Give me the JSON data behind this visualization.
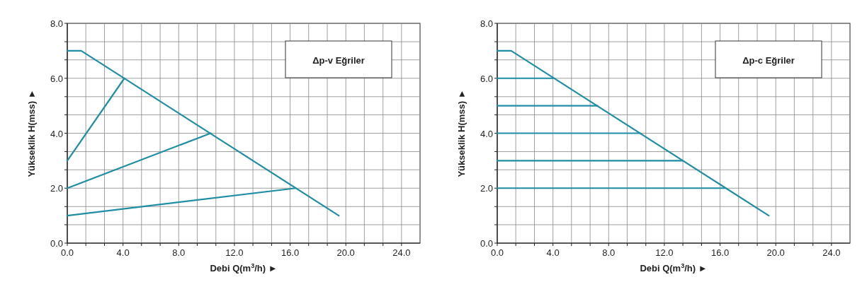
{
  "chart_data": [
    {
      "type": "line",
      "title": "Δp-v Eğriler",
      "xlabel": "Debi Q(m$^{3}$/h) ►",
      "ylabel": "Yükseklik H(mss) ►",
      "xlim": [
        0,
        25.33
      ],
      "ylim": [
        0,
        8
      ],
      "xticks": [
        {
          "value": 0,
          "label": "0.0"
        },
        {
          "value": 1.33,
          "label": null
        },
        {
          "value": 2.67,
          "label": null
        },
        {
          "value": 4,
          "label": "4.0"
        },
        {
          "value": 5.33,
          "label": null
        },
        {
          "value": 6.67,
          "label": null
        },
        {
          "value": 8,
          "label": "8.0"
        },
        {
          "value": 9.33,
          "label": null
        },
        {
          "value": 10.67,
          "label": null
        },
        {
          "value": 12,
          "label": "12.0"
        },
        {
          "value": 13.33,
          "label": null
        },
        {
          "value": 14.67,
          "label": null
        },
        {
          "value": 16,
          "label": "16.0"
        },
        {
          "value": 17.33,
          "label": null
        },
        {
          "value": 18.67,
          "label": null
        },
        {
          "value": 20,
          "label": "20.0"
        },
        {
          "value": 21.33,
          "label": null
        },
        {
          "value": 22.67,
          "label": null
        },
        {
          "value": 24,
          "label": "24.0"
        }
      ],
      "yticks": [
        {
          "value": 0,
          "label": "0.0"
        },
        {
          "value": 0.67,
          "label": null
        },
        {
          "value": 1.33,
          "label": null
        },
        {
          "value": 2,
          "label": "2.0"
        },
        {
          "value": 2.67,
          "label": null
        },
        {
          "value": 3.33,
          "label": null
        },
        {
          "value": 4,
          "label": "4.0"
        },
        {
          "value": 4.67,
          "label": null
        },
        {
          "value": 5.33,
          "label": null
        },
        {
          "value": 6,
          "label": "6.0"
        },
        {
          "value": 6.67,
          "label": null
        },
        {
          "value": 7.33,
          "label": null
        },
        {
          "value": 8,
          "label": "8.0"
        }
      ],
      "grid": true,
      "series": [
        {
          "color": "#1f8ea5",
          "x": [
            0,
            1,
            19.5
          ],
          "values": [
            7,
            7,
            1
          ]
        },
        {
          "color": "#1f8ea5",
          "x": [
            0,
            4.1
          ],
          "values": [
            3,
            6
          ]
        },
        {
          "color": "#1f8ea5",
          "x": [
            0,
            10.3
          ],
          "values": [
            2,
            4
          ]
        },
        {
          "color": "#1f8ea5",
          "x": [
            0,
            16.4
          ],
          "values": [
            1,
            2
          ]
        }
      ]
    },
    {
      "type": "line",
      "title": "Δp-c Eğriler",
      "xlabel": "Debi Q(m$^{3}$/h) ►",
      "ylabel": "Yükseklik H(mss) ►",
      "xlim": [
        0,
        25.33
      ],
      "ylim": [
        0,
        8
      ],
      "xticks": [
        {
          "value": 0,
          "label": "0.0"
        },
        {
          "value": 1.33,
          "label": null
        },
        {
          "value": 2.67,
          "label": null
        },
        {
          "value": 4,
          "label": "4.0"
        },
        {
          "value": 5.33,
          "label": null
        },
        {
          "value": 6.67,
          "label": null
        },
        {
          "value": 8,
          "label": "8.0"
        },
        {
          "value": 9.33,
          "label": null
        },
        {
          "value": 10.67,
          "label": null
        },
        {
          "value": 12,
          "label": "12.0"
        },
        {
          "value": 13.33,
          "label": null
        },
        {
          "value": 14.67,
          "label": null
        },
        {
          "value": 16,
          "label": "16.0"
        },
        {
          "value": 17.33,
          "label": null
        },
        {
          "value": 18.67,
          "label": null
        },
        {
          "value": 20,
          "label": "20.0"
        },
        {
          "value": 21.33,
          "label": null
        },
        {
          "value": 22.67,
          "label": null
        },
        {
          "value": 24,
          "label": "24.0"
        }
      ],
      "yticks": [
        {
          "value": 0,
          "label": "0.0"
        },
        {
          "value": 0.67,
          "label": null
        },
        {
          "value": 1.33,
          "label": null
        },
        {
          "value": 2,
          "label": "2.0"
        },
        {
          "value": 2.67,
          "label": null
        },
        {
          "value": 3.33,
          "label": null
        },
        {
          "value": 4,
          "label": "4.0"
        },
        {
          "value": 4.67,
          "label": null
        },
        {
          "value": 5.33,
          "label": null
        },
        {
          "value": 6,
          "label": "6.0"
        },
        {
          "value": 6.67,
          "label": null
        },
        {
          "value": 7.33,
          "label": null
        },
        {
          "value": 8,
          "label": "8.0"
        }
      ],
      "grid": true,
      "series": [
        {
          "color": "#1f8ea5",
          "x": [
            0,
            1,
            19.5
          ],
          "values": [
            7,
            7,
            1
          ]
        },
        {
          "color": "#1f8ea5",
          "x": [
            0,
            4.1
          ],
          "values": [
            6,
            6
          ]
        },
        {
          "color": "#1f8ea5",
          "x": [
            0,
            7.2
          ],
          "values": [
            5,
            5
          ]
        },
        {
          "color": "#1f8ea5",
          "x": [
            0,
            10.3
          ],
          "values": [
            4,
            4
          ]
        },
        {
          "color": "#1f8ea5",
          "x": [
            0,
            13.3
          ],
          "values": [
            3,
            3
          ]
        },
        {
          "color": "#1f8ea5",
          "x": [
            0,
            16.4
          ],
          "values": [
            2,
            2
          ]
        }
      ]
    }
  ]
}
